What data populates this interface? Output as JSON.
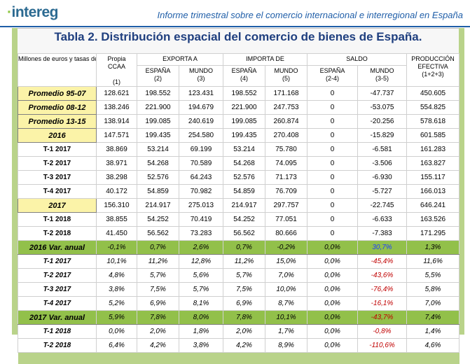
{
  "header": {
    "logo_text": "intereg",
    "report_title": "Informe trimestral sobre el comercio internacional e interregional en España"
  },
  "table": {
    "title": "Tabla 2. Distribución espacial del comercio de bienes de España.",
    "header": {
      "row_label": "Millones de euros y tasas de variación interanuales",
      "propia_1": "Propia",
      "propia_2": "CCAA",
      "propia_3": "(1)",
      "exporta": "EXPORTA A",
      "importa": "IMPORTA DE",
      "saldo": "SALDO",
      "produccion_1": "PRODUCCIÓN",
      "produccion_2": "EFECTIVA",
      "produccion_3": "(1+2+3)",
      "exp_espana": "ESPAÑA",
      "exp_espana_n": "(2)",
      "exp_mundo": "MUNDO",
      "exp_mundo_n": "(3)",
      "imp_espana": "ESPAÑA",
      "imp_espana_n": "(4)",
      "imp_mundo": "MUNDO",
      "imp_mundo_n": "(5)",
      "sal_espana": "ESPAÑA",
      "sal_espana_n": "(2-4)",
      "sal_mundo": "MUNDO",
      "sal_mundo_n": "(3-5)"
    },
    "rows": [
      {
        "label": "Promedio 95-07",
        "v": [
          "128.621",
          "198.552",
          "123.431",
          "198.552",
          "171.168",
          "0",
          "-47.737",
          "450.605"
        ]
      },
      {
        "label": "Promedio 08-12",
        "v": [
          "138.246",
          "221.900",
          "194.679",
          "221.900",
          "247.753",
          "0",
          "-53.075",
          "554.825"
        ]
      },
      {
        "label": "Promedio 13-15",
        "v": [
          "138.914",
          "199.085",
          "240.619",
          "199.085",
          "260.874",
          "0",
          "-20.256",
          "578.618"
        ]
      },
      {
        "label": "2016",
        "v": [
          "147.571",
          "199.435",
          "254.580",
          "199.435",
          "270.408",
          "0",
          "-15.829",
          "601.585"
        ]
      },
      {
        "label": "T-1 2017",
        "v": [
          "38.869",
          "53.214",
          "69.199",
          "53.214",
          "75.780",
          "0",
          "-6.581",
          "161.283"
        ]
      },
      {
        "label": "T-2 2017",
        "v": [
          "38.971",
          "54.268",
          "70.589",
          "54.268",
          "74.095",
          "0",
          "-3.506",
          "163.827"
        ]
      },
      {
        "label": "T-3 2017",
        "v": [
          "38.298",
          "52.576",
          "64.243",
          "52.576",
          "71.173",
          "0",
          "-6.930",
          "155.117"
        ]
      },
      {
        "label": "T-4 2017",
        "v": [
          "40.172",
          "54.859",
          "70.982",
          "54.859",
          "76.709",
          "0",
          "-5.727",
          "166.013"
        ]
      },
      {
        "label": "2017",
        "v": [
          "156.310",
          "214.917",
          "275.013",
          "214.917",
          "297.757",
          "0",
          "-22.745",
          "646.241"
        ]
      },
      {
        "label": "T-1 2018",
        "v": [
          "38.855",
          "54.252",
          "70.419",
          "54.252",
          "77.051",
          "0",
          "-6.633",
          "163.526"
        ]
      },
      {
        "label": "T-2 2018",
        "v": [
          "41.450",
          "56.562",
          "73.283",
          "56.562",
          "80.666",
          "0",
          "-7.383",
          "171.295"
        ]
      },
      {
        "label": "2016 Var. anual",
        "v": [
          "-0,1%",
          "0,7%",
          "2,6%",
          "0,7%",
          "-0,2%",
          "0,0%",
          "30,7%",
          "1,3%"
        ]
      },
      {
        "label": "T-1 2017",
        "v": [
          "10,1%",
          "11,2%",
          "12,8%",
          "11,2%",
          "15,0%",
          "0,0%",
          "-45,4%",
          "11,6%"
        ]
      },
      {
        "label": "T-2 2017",
        "v": [
          "4,8%",
          "5,7%",
          "5,6%",
          "5,7%",
          "7,0%",
          "0,0%",
          "-43,6%",
          "5,5%"
        ]
      },
      {
        "label": "T-3 2017",
        "v": [
          "3,8%",
          "7,5%",
          "5,7%",
          "7,5%",
          "10,0%",
          "0,0%",
          "-76,4%",
          "5,8%"
        ]
      },
      {
        "label": "T-4 2017",
        "v": [
          "5,2%",
          "6,9%",
          "8,1%",
          "6,9%",
          "8,7%",
          "0,0%",
          "-16,1%",
          "7,0%"
        ]
      },
      {
        "label": "2017 Var. anual",
        "v": [
          "5,9%",
          "7,8%",
          "8,0%",
          "7,8%",
          "10,1%",
          "0,0%",
          "-43,7%",
          "7,4%"
        ]
      },
      {
        "label": "T-1 2018",
        "v": [
          "0,0%",
          "2,0%",
          "1,8%",
          "2,0%",
          "1,7%",
          "0,0%",
          "-0,8%",
          "1,4%"
        ]
      },
      {
        "label": "T-2 2018",
        "v": [
          "6,4%",
          "4,2%",
          "3,8%",
          "4,2%",
          "8,9%",
          "0,0%",
          "-110,6%",
          "4,6%"
        ]
      }
    ]
  }
}
